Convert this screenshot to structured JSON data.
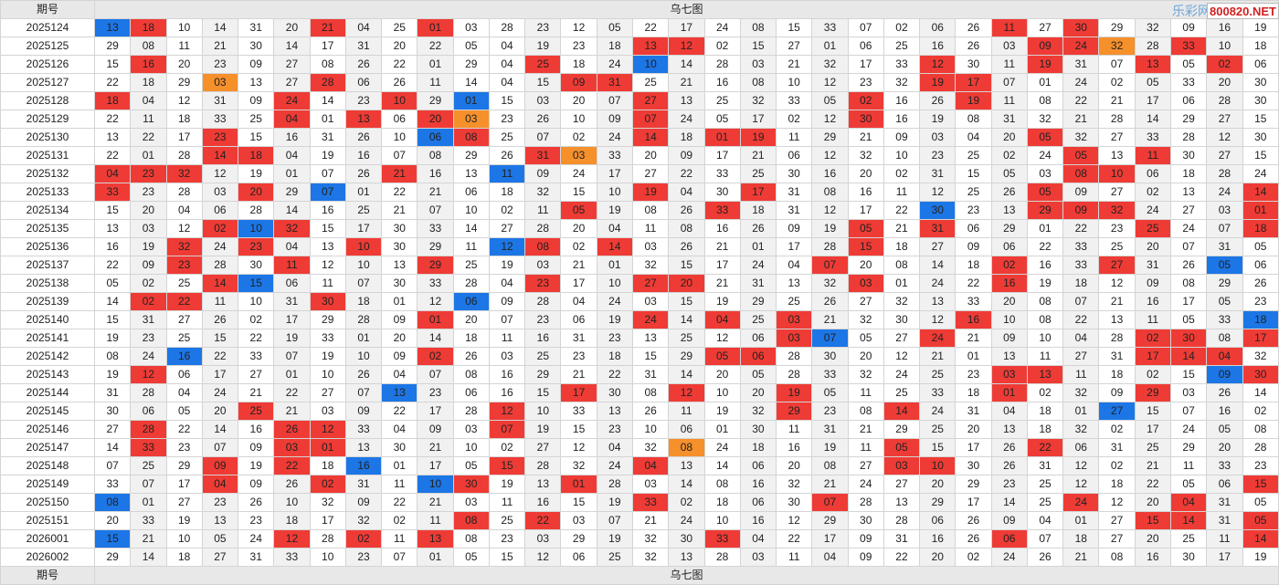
{
  "header": {
    "period_label": "期号",
    "title": "乌七图",
    "watermark": "乐彩网",
    "site": "800820.NET"
  },
  "footer": {
    "period_label": "期号",
    "title": "乌七图"
  },
  "legend_colors": {
    "r": "#ef3b35",
    "b": "#1c76e6",
    "o": "#f5902b"
  },
  "rows": [
    {
      "period": "2025124",
      "values": [
        "13",
        "18",
        "10",
        "14",
        "31",
        "20",
        "21",
        "04",
        "25",
        "01",
        "03",
        "28",
        "23",
        "12",
        "05",
        "22",
        "17",
        "24",
        "08",
        "15",
        "33",
        "07",
        "02",
        "06",
        "26",
        "11",
        "27",
        "30",
        "29",
        "32",
        "09",
        "16",
        "19"
      ],
      "colors": "br....r..r...............r.r...........r"
    },
    {
      "period": "2025125",
      "values": [
        "29",
        "08",
        "11",
        "21",
        "30",
        "14",
        "17",
        "31",
        "20",
        "22",
        "05",
        "04",
        "19",
        "23",
        "18",
        "13",
        "12",
        "02",
        "15",
        "27",
        "01",
        "06",
        "25",
        "16",
        "26",
        "03",
        "09",
        "24",
        "32",
        "28",
        "33",
        "10",
        "18"
      ],
      "colors": "...............rr.........rro.r..."
    },
    {
      "period": "2025126",
      "values": [
        "15",
        "16",
        "20",
        "23",
        "09",
        "27",
        "08",
        "26",
        "22",
        "01",
        "29",
        "04",
        "25",
        "18",
        "24",
        "10",
        "14",
        "28",
        "03",
        "21",
        "32",
        "17",
        "33",
        "12",
        "30",
        "11",
        "19",
        "31",
        "07",
        "13",
        "05",
        "02",
        "06"
      ],
      "colors": ".r..........r..b.......r..r..r.r."
    },
    {
      "period": "2025127",
      "values": [
        "22",
        "18",
        "29",
        "03",
        "13",
        "27",
        "28",
        "06",
        "26",
        "11",
        "14",
        "04",
        "15",
        "09",
        "31",
        "25",
        "21",
        "16",
        "08",
        "10",
        "12",
        "23",
        "32",
        "19",
        "17",
        "07",
        "01",
        "24",
        "02",
        "05",
        "33",
        "20",
        "30"
      ],
      "colors": "...o..r......rr........rr........"
    },
    {
      "period": "2025128",
      "values": [
        "18",
        "04",
        "12",
        "31",
        "09",
        "24",
        "14",
        "23",
        "10",
        "29",
        "01",
        "15",
        "03",
        "20",
        "07",
        "27",
        "13",
        "25",
        "32",
        "33",
        "05",
        "02",
        "16",
        "26",
        "19",
        "11",
        "08",
        "22",
        "21",
        "17",
        "06",
        "28",
        "30"
      ],
      "colors": "r....r..r.b....r.....r..r........"
    },
    {
      "period": "2025129",
      "values": [
        "22",
        "11",
        "18",
        "33",
        "25",
        "04",
        "01",
        "13",
        "06",
        "20",
        "03",
        "23",
        "26",
        "10",
        "09",
        "07",
        "24",
        "05",
        "17",
        "02",
        "12",
        "30",
        "16",
        "19",
        "08",
        "31",
        "32",
        "21",
        "28",
        "14",
        "29",
        "27",
        "15"
      ],
      "colors": ".....r.r.ro....r.....r..........."
    },
    {
      "period": "2025130",
      "values": [
        "13",
        "22",
        "17",
        "23",
        "15",
        "16",
        "31",
        "26",
        "10",
        "06",
        "08",
        "25",
        "07",
        "02",
        "24",
        "14",
        "18",
        "01",
        "19",
        "11",
        "29",
        "21",
        "09",
        "03",
        "04",
        "20",
        "05",
        "32",
        "27",
        "33",
        "28",
        "12",
        "30"
      ],
      "colors": "...r.....br....r.rr.......r......"
    },
    {
      "period": "2025131",
      "values": [
        "22",
        "01",
        "28",
        "14",
        "18",
        "04",
        "19",
        "16",
        "07",
        "08",
        "29",
        "26",
        "31",
        "03",
        "33",
        "20",
        "09",
        "17",
        "21",
        "06",
        "12",
        "32",
        "10",
        "23",
        "25",
        "02",
        "24",
        "05",
        "13",
        "11",
        "30",
        "27",
        "15"
      ],
      "colors": "...rr.......ro.............r.r..."
    },
    {
      "period": "2025132",
      "values": [
        "04",
        "23",
        "32",
        "12",
        "19",
        "01",
        "07",
        "26",
        "21",
        "16",
        "13",
        "11",
        "09",
        "24",
        "17",
        "27",
        "22",
        "33",
        "25",
        "30",
        "16",
        "20",
        "02",
        "31",
        "15",
        "05",
        "03",
        "08",
        "10",
        "06",
        "18",
        "28",
        "24"
      ],
      "colors": "rrr.....r..b...............rr...."
    },
    {
      "period": "2025133",
      "values": [
        "33",
        "23",
        "28",
        "03",
        "20",
        "29",
        "07",
        "01",
        "22",
        "21",
        "06",
        "18",
        "32",
        "15",
        "10",
        "19",
        "04",
        "30",
        "17",
        "31",
        "08",
        "16",
        "11",
        "12",
        "25",
        "26",
        "05",
        "09",
        "27",
        "02",
        "13",
        "24",
        "14"
      ],
      "colors": "r...r.b........r..r.......r.....r"
    },
    {
      "period": "2025134",
      "values": [
        "15",
        "20",
        "04",
        "06",
        "28",
        "14",
        "16",
        "25",
        "21",
        "07",
        "10",
        "02",
        "11",
        "05",
        "19",
        "08",
        "26",
        "33",
        "18",
        "31",
        "12",
        "17",
        "22",
        "30",
        "23",
        "13",
        "29",
        "09",
        "32",
        "24",
        "27",
        "03",
        "01"
      ],
      "colors": ".............r...r.....b..rrr...r."
    },
    {
      "period": "2025135",
      "values": [
        "13",
        "03",
        "12",
        "02",
        "10",
        "32",
        "15",
        "17",
        "30",
        "33",
        "14",
        "27",
        "28",
        "20",
        "04",
        "11",
        "08",
        "16",
        "26",
        "09",
        "19",
        "05",
        "21",
        "31",
        "06",
        "29",
        "01",
        "22",
        "23",
        "25",
        "24",
        "07",
        "18"
      ],
      "colors": "...rbr...............r.r.....r..r.."
    },
    {
      "period": "2025136",
      "values": [
        "16",
        "19",
        "32",
        "24",
        "23",
        "04",
        "13",
        "10",
        "30",
        "29",
        "11",
        "12",
        "08",
        "02",
        "14",
        "03",
        "26",
        "21",
        "01",
        "17",
        "28",
        "15",
        "18",
        "27",
        "09",
        "06",
        "22",
        "33",
        "25",
        "20",
        "07",
        "31",
        "05"
      ],
      "colors": "..r.r..r...br.r......r..........."
    },
    {
      "period": "2025137",
      "values": [
        "22",
        "09",
        "23",
        "28",
        "30",
        "11",
        "12",
        "10",
        "13",
        "29",
        "25",
        "19",
        "03",
        "21",
        "01",
        "32",
        "15",
        "17",
        "24",
        "04",
        "07",
        "20",
        "08",
        "14",
        "18",
        "02",
        "16",
        "33",
        "27",
        "31",
        "26",
        "05",
        "06"
      ],
      "colors": "..r..r...r..........r....r..r..b."
    },
    {
      "period": "2025138",
      "values": [
        "05",
        "02",
        "25",
        "14",
        "15",
        "06",
        "11",
        "07",
        "30",
        "33",
        "28",
        "04",
        "23",
        "17",
        "10",
        "27",
        "20",
        "21",
        "31",
        "13",
        "32",
        "03",
        "01",
        "24",
        "22",
        "16",
        "19",
        "18",
        "12",
        "09",
        "08",
        "29",
        "26"
      ],
      "colors": "...rb.......r..rr....r...r........"
    },
    {
      "period": "2025139",
      "values": [
        "14",
        "02",
        "22",
        "11",
        "10",
        "31",
        "30",
        "18",
        "01",
        "12",
        "06",
        "09",
        "28",
        "04",
        "24",
        "03",
        "15",
        "19",
        "29",
        "25",
        "26",
        "27",
        "32",
        "13",
        "33",
        "20",
        "08",
        "07",
        "21",
        "16",
        "17",
        "05",
        "23"
      ],
      "colors": ".rr...r...b.......................r..rr."
    },
    {
      "period": "2025140",
      "values": [
        "15",
        "31",
        "27",
        "26",
        "02",
        "17",
        "29",
        "28",
        "09",
        "01",
        "20",
        "07",
        "23",
        "06",
        "19",
        "24",
        "14",
        "04",
        "25",
        "03",
        "21",
        "32",
        "30",
        "12",
        "16",
        "10",
        "08",
        "22",
        "13",
        "11",
        "05",
        "33",
        "18"
      ],
      "colors": ".........r.....r.r.r....r.......b.r"
    },
    {
      "period": "2025141",
      "values": [
        "19",
        "23",
        "25",
        "15",
        "22",
        "19",
        "33",
        "01",
        "20",
        "14",
        "18",
        "11",
        "16",
        "31",
        "23",
        "13",
        "25",
        "12",
        "06",
        "03",
        "07",
        "05",
        "27",
        "24",
        "21",
        "09",
        "10",
        "04",
        "28",
        "02",
        "30",
        "08",
        "17"
      ],
      "colors": "...................rb..r.....rr.r...."
    },
    {
      "period": "2025142",
      "values": [
        "08",
        "24",
        "16",
        "22",
        "33",
        "07",
        "19",
        "10",
        "09",
        "02",
        "26",
        "03",
        "25",
        "23",
        "18",
        "15",
        "29",
        "05",
        "06",
        "28",
        "30",
        "20",
        "12",
        "21",
        "01",
        "13",
        "11",
        "27",
        "31",
        "17",
        "14",
        "04",
        "32"
      ],
      "colors": "..b......r.......rr..........rrr..."
    },
    {
      "period": "2025143",
      "values": [
        "19",
        "12",
        "06",
        "17",
        "27",
        "01",
        "10",
        "26",
        "04",
        "07",
        "08",
        "16",
        "29",
        "21",
        "22",
        "31",
        "14",
        "20",
        "05",
        "28",
        "33",
        "32",
        "24",
        "25",
        "23",
        "03",
        "13",
        "11",
        "18",
        "02",
        "15",
        "09",
        "30"
      ],
      "colors": ".r.......................rr....brr..rrr"
    },
    {
      "period": "2025144",
      "values": [
        "31",
        "28",
        "04",
        "24",
        "21",
        "22",
        "27",
        "07",
        "13",
        "23",
        "06",
        "16",
        "15",
        "17",
        "30",
        "08",
        "12",
        "10",
        "20",
        "19",
        "05",
        "11",
        "25",
        "33",
        "18",
        "01",
        "02",
        "32",
        "09",
        "29",
        "03",
        "26",
        "14"
      ],
      "colors": "........b....r..r..r.....r...r.....r."
    },
    {
      "period": "2025145",
      "values": [
        "30",
        "06",
        "05",
        "20",
        "25",
        "21",
        "03",
        "09",
        "22",
        "17",
        "28",
        "12",
        "10",
        "33",
        "13",
        "26",
        "11",
        "19",
        "32",
        "29",
        "23",
        "08",
        "14",
        "24",
        "31",
        "04",
        "18",
        "01",
        "27",
        "15",
        "07",
        "16",
        "02"
      ],
      "colors": "....r......r.......r..r.....b.....r....r"
    },
    {
      "period": "2025146",
      "values": [
        "27",
        "28",
        "22",
        "14",
        "16",
        "26",
        "12",
        "33",
        "04",
        "09",
        "03",
        "07",
        "19",
        "15",
        "23",
        "10",
        "06",
        "01",
        "30",
        "11",
        "31",
        "21",
        "29",
        "25",
        "20",
        "13",
        "18",
        "32",
        "02",
        "17",
        "24",
        "05",
        "08"
      ],
      "colors": ".r...rr....r......................b.rr."
    },
    {
      "period": "2025147",
      "values": [
        "14",
        "33",
        "23",
        "07",
        "09",
        "03",
        "01",
        "13",
        "30",
        "21",
        "10",
        "02",
        "27",
        "12",
        "04",
        "32",
        "08",
        "24",
        "18",
        "16",
        "19",
        "11",
        "05",
        "15",
        "17",
        "26",
        "22",
        "06",
        "31",
        "25",
        "29",
        "20",
        "28"
      ],
      "colors": ".r...rr.........o.....r...r........"
    },
    {
      "period": "2025148",
      "values": [
        "07",
        "25",
        "29",
        "09",
        "19",
        "22",
        "18",
        "16",
        "01",
        "17",
        "05",
        "15",
        "28",
        "32",
        "24",
        "04",
        "13",
        "14",
        "06",
        "20",
        "08",
        "27",
        "03",
        "10",
        "30",
        "26",
        "31",
        "12",
        "02",
        "21",
        "11",
        "33",
        "23"
      ],
      "colors": "...r.r.b...r...r......rr........."
    },
    {
      "period": "2025149",
      "values": [
        "33",
        "07",
        "17",
        "04",
        "09",
        "26",
        "02",
        "31",
        "11",
        "10",
        "30",
        "19",
        "13",
        "01",
        "28",
        "03",
        "14",
        "08",
        "16",
        "32",
        "21",
        "24",
        "27",
        "20",
        "29",
        "23",
        "25",
        "12",
        "18",
        "22",
        "05",
        "06",
        "15"
      ],
      "colors": "...r..r..br..r..................r.r.."
    },
    {
      "period": "2025150",
      "values": [
        "08",
        "01",
        "27",
        "23",
        "26",
        "10",
        "32",
        "09",
        "22",
        "21",
        "03",
        "11",
        "16",
        "15",
        "19",
        "33",
        "02",
        "18",
        "06",
        "30",
        "07",
        "28",
        "13",
        "29",
        "17",
        "14",
        "25",
        "24",
        "12",
        "20",
        "04",
        "31",
        "05"
      ],
      "colors": "b..............r....r......r..r...r....r.."
    },
    {
      "period": "2025151",
      "values": [
        "20",
        "33",
        "19",
        "13",
        "23",
        "18",
        "17",
        "32",
        "02",
        "11",
        "08",
        "25",
        "22",
        "03",
        "07",
        "21",
        "24",
        "10",
        "16",
        "12",
        "29",
        "30",
        "28",
        "06",
        "26",
        "09",
        "04",
        "01",
        "27",
        "15",
        "14",
        "31",
        "05"
      ],
      "colors": "..........r.r................rr.rb...r.."
    },
    {
      "period": "2026001",
      "values": [
        "15",
        "21",
        "10",
        "05",
        "24",
        "12",
        "28",
        "02",
        "11",
        "13",
        "08",
        "23",
        "03",
        "29",
        "19",
        "32",
        "30",
        "33",
        "04",
        "22",
        "17",
        "09",
        "31",
        "16",
        "26",
        "06",
        "07",
        "18",
        "27",
        "20",
        "25",
        "11",
        "14"
      ],
      "colors": "b....r.r.r.......r.......r......r.."
    },
    {
      "period": "2026002",
      "values": [
        "29",
        "14",
        "18",
        "27",
        "31",
        "33",
        "10",
        "23",
        "07",
        "01",
        "05",
        "15",
        "12",
        "06",
        "25",
        "32",
        "13",
        "28",
        "03",
        "11",
        "04",
        "09",
        "22",
        "20",
        "02",
        "24",
        "26",
        "21",
        "08",
        "16",
        "30",
        "17",
        "19"
      ],
      "colors": "................................."
    }
  ]
}
